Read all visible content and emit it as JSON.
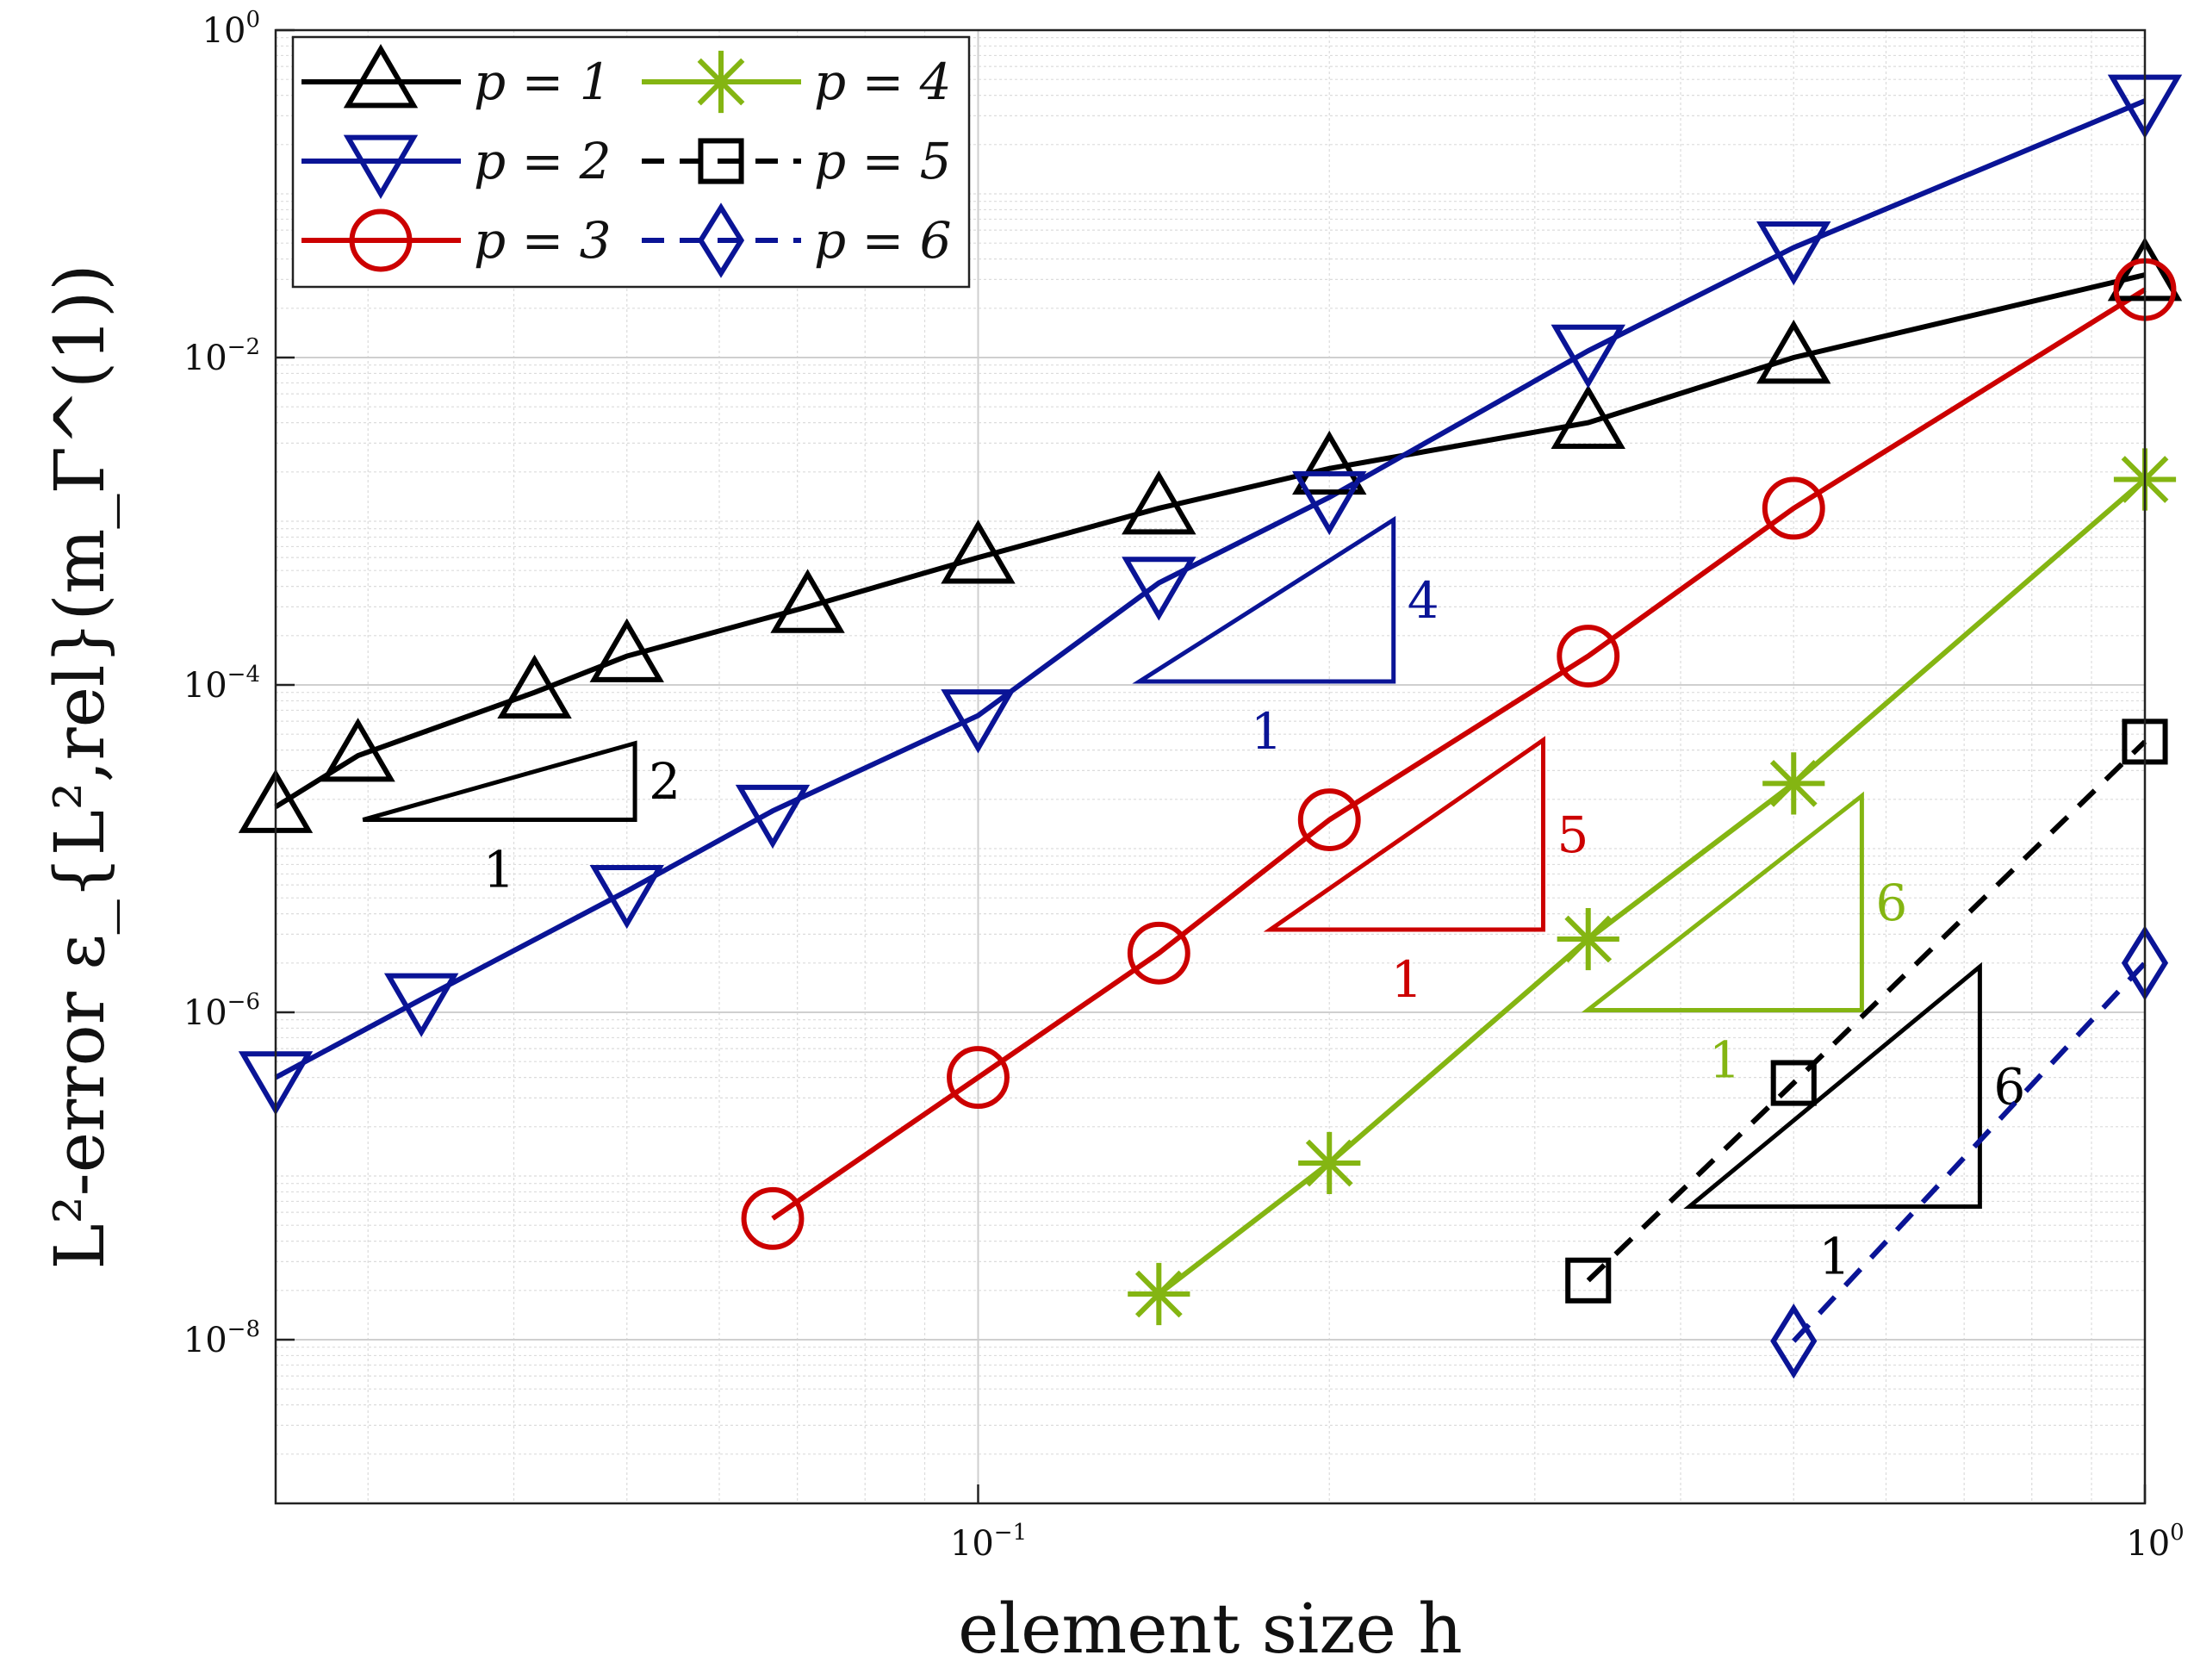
{
  "chart_data": {
    "type": "line",
    "xscale": "log",
    "yscale": "log",
    "xlim": [
      0.025,
      1.0
    ],
    "ylim": [
      1e-09,
      1.0
    ],
    "xlabel": "element size h",
    "ylabel": "L²-error ε_{L²,rel}(m_Γ^(1))",
    "x_ticks": [
      {
        "value": 0.1,
        "base": "10",
        "exp": "−1"
      },
      {
        "value": 1.0,
        "base": "10",
        "exp": "0"
      }
    ],
    "y_ticks": [
      {
        "value": 1e-08,
        "base": "10",
        "exp": "−8"
      },
      {
        "value": 1e-06,
        "base": "10",
        "exp": "−6"
      },
      {
        "value": 0.0001,
        "base": "10",
        "exp": "−4"
      },
      {
        "value": 0.01,
        "base": "10",
        "exp": "−2"
      },
      {
        "value": 1.0,
        "base": "10",
        "exp": "0"
      }
    ],
    "grid": true,
    "legend_position": "top-left",
    "series": [
      {
        "name": "p = 1",
        "color": "#000000",
        "marker": "triangle-up",
        "dash": false,
        "x": [
          0.025,
          0.02941,
          0.04167,
          0.05,
          0.07143,
          0.1,
          0.14286,
          0.2,
          0.33333,
          0.5,
          1.0
        ],
        "y": [
          1.8e-05,
          3.7e-05,
          9e-05,
          0.00015,
          0.0003,
          0.0006,
          0.0012,
          0.0021,
          0.004,
          0.01,
          0.032
        ]
      },
      {
        "name": "p = 2",
        "color": "#0a1496",
        "marker": "triangle-down",
        "dash": false,
        "x": [
          0.025,
          0.03333,
          0.05,
          0.06667,
          0.1,
          0.14286,
          0.2,
          0.33333,
          0.5,
          1.0
        ],
        "y": [
          4e-07,
          1.2e-06,
          5.5e-06,
          1.7e-05,
          6.5e-05,
          0.00042,
          0.0014,
          0.011,
          0.047,
          0.37
        ]
      },
      {
        "name": "p = 3",
        "color": "#cc0000",
        "marker": "circle",
        "dash": false,
        "x": [
          0.06667,
          0.1,
          0.14286,
          0.2,
          0.33333,
          0.5,
          1.0
        ],
        "y": [
          5.5e-08,
          4e-07,
          2.3e-06,
          1.5e-05,
          0.00015,
          0.0012,
          0.026
        ]
      },
      {
        "name": "p = 4",
        "color": "#84b512",
        "marker": "asterisk",
        "dash": false,
        "x": [
          0.14286,
          0.2,
          0.33333,
          0.5,
          1.0
        ],
        "y": [
          1.9e-08,
          1.2e-07,
          2.8e-06,
          2.5e-05,
          0.0018
        ]
      },
      {
        "name": "p = 5",
        "color": "#000000",
        "marker": "square",
        "dash": true,
        "x": [
          0.33333,
          0.5,
          1.0
        ],
        "y": [
          2.3e-08,
          3.7e-07,
          4.5e-05
        ]
      },
      {
        "name": "p = 6",
        "color": "#0a1496",
        "marker": "diamond",
        "dash": true,
        "x": [
          0.5,
          1.0
        ],
        "y": [
          9.8e-09,
          2e-06
        ]
      }
    ],
    "slope_triangles": [
      {
        "color": "#000000",
        "x1": 0.0297,
        "x2": 0.0508,
        "y_base": 1.5e-05,
        "y_top": 4.4e-05,
        "rise_label": "2",
        "run_label": "1"
      },
      {
        "color": "#0a1496",
        "x1": 0.1375,
        "x2": 0.227,
        "y_base": 0.000105,
        "y_top": 0.00102,
        "rise_label": "4",
        "run_label": "1"
      },
      {
        "color": "#cc0000",
        "x1": 0.178,
        "x2": 0.305,
        "y_base": 3.2e-06,
        "y_top": 4.6e-05,
        "rise_label": "5",
        "run_label": "1"
      },
      {
        "color": "#84b512",
        "x1": 0.333,
        "x2": 0.572,
        "y_base": 1.03e-06,
        "y_top": 2.1e-05,
        "rise_label": "6",
        "run_label": "1"
      },
      {
        "color": "#000000",
        "x1": 0.407,
        "x2": 0.722,
        "y_base": 6.5e-08,
        "y_top": 1.9e-06,
        "rise_label": "6",
        "run_label": "1"
      }
    ]
  }
}
